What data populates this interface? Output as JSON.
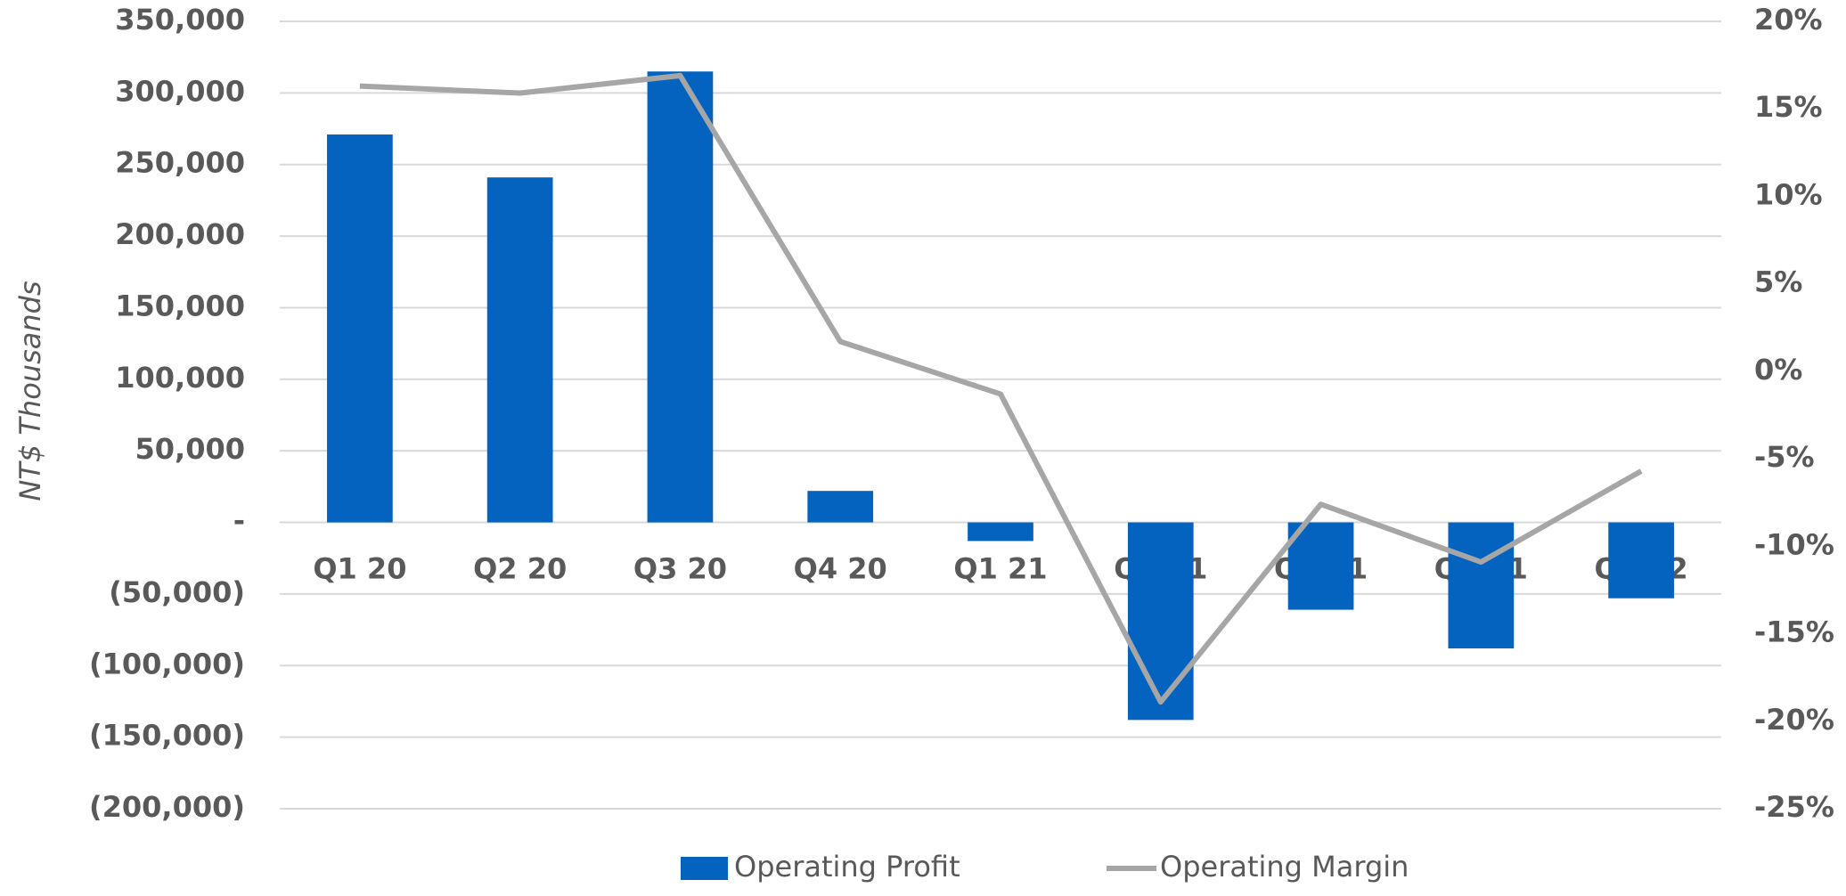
{
  "chart_data": {
    "type": "bar",
    "y_label": "NT$ Thousands",
    "categories": [
      "Q1 20",
      "Q2 20",
      "Q3 20",
      "Q4 20",
      "Q1 21",
      "Q2 21",
      "Q3 21",
      "Q4 21",
      "Q1 22"
    ],
    "series": [
      {
        "name": "Operating Profit",
        "type": "bar",
        "color": "#0563c0",
        "values": [
          271000,
          241000,
          315000,
          22000,
          -13000,
          -138000,
          -61000,
          -88000,
          -53000
        ]
      },
      {
        "name": "Operating Margin",
        "type": "line",
        "axis": "y2",
        "color": "#a6a6a6",
        "values": [
          16.3,
          15.9,
          16.9,
          1.7,
          -1.3,
          -18.9,
          -7.6,
          -10.9,
          -5.7
        ]
      }
    ],
    "ylim": [
      -200000,
      350000
    ],
    "yticks": [
      {
        "value": -200000,
        "label": "(200,000)"
      },
      {
        "value": -150000,
        "label": "(150,000)"
      },
      {
        "value": -100000,
        "label": "(100,000)"
      },
      {
        "value": -50000,
        "label": "(50,000)"
      },
      {
        "value": 0,
        "label": "-"
      },
      {
        "value": 50000,
        "label": "50,000"
      },
      {
        "value": 100000,
        "label": "100,000"
      },
      {
        "value": 150000,
        "label": "150,000"
      },
      {
        "value": 200000,
        "label": "200,000"
      },
      {
        "value": 250000,
        "label": "250,000"
      },
      {
        "value": 300000,
        "label": "300,000"
      },
      {
        "value": 350000,
        "label": "350,000"
      }
    ],
    "y2lim": [
      -25,
      20
    ],
    "y2ticks": [
      {
        "value": -25,
        "label": "-25%"
      },
      {
        "value": -20,
        "label": "-20%"
      },
      {
        "value": -15,
        "label": "-15%"
      },
      {
        "value": -10,
        "label": "-10%"
      },
      {
        "value": -5,
        "label": "-5%"
      },
      {
        "value": 0,
        "label": "0%"
      },
      {
        "value": 5,
        "label": "5%"
      },
      {
        "value": 10,
        "label": "10%"
      },
      {
        "value": 15,
        "label": "15%"
      },
      {
        "value": 20,
        "label": "20%"
      }
    ],
    "grid": true,
    "legend": "bottom"
  }
}
